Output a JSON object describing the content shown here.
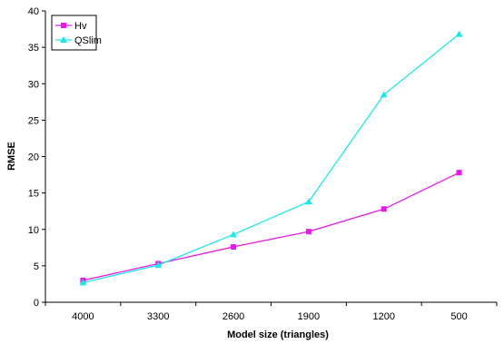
{
  "chart_data": {
    "type": "line",
    "categories": [
      "4000",
      "3300",
      "2600",
      "1900",
      "1200",
      "500"
    ],
    "series": [
      {
        "name": "Hv",
        "values": [
          3.0,
          5.3,
          7.6,
          9.7,
          12.8,
          17.8
        ],
        "color": "#e619e6",
        "marker": "square"
      },
      {
        "name": "QSlim",
        "values": [
          2.7,
          5.1,
          9.3,
          13.8,
          28.5,
          36.8
        ],
        "color": "#1ee6e6",
        "marker": "triangle"
      }
    ],
    "yticks": [
      0,
      5,
      10,
      15,
      20,
      25,
      30,
      35,
      40
    ],
    "ylim": [
      0,
      40
    ],
    "xlabel": "Model size (triangles)",
    "ylabel": "RMSE",
    "legend_position": "top-left",
    "grid": false
  }
}
